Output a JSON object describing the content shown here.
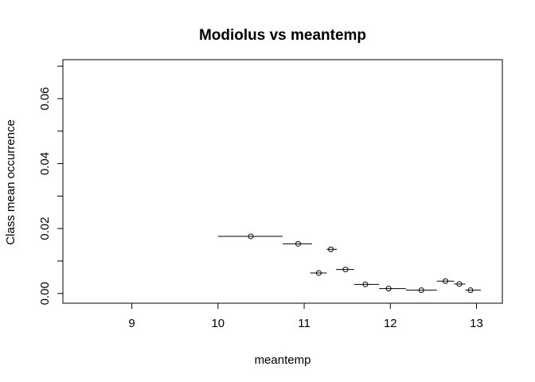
{
  "chart_data": {
    "type": "scatter",
    "title": "Modiolus vs meantemp",
    "xlabel": "meantemp",
    "ylabel": "Class mean occurrence",
    "xlim": [
      8.2,
      13.3
    ],
    "ylim": [
      -0.003,
      0.072
    ],
    "x_ticks": [
      9,
      10,
      11,
      12,
      13
    ],
    "x_tick_labels": [
      "9",
      "10",
      "11",
      "12",
      "13"
    ],
    "y_ticks": [
      0.0,
      0.01,
      0.02,
      0.03,
      0.04,
      0.05,
      0.06,
      0.07
    ],
    "y_tick_labels": [
      "0.00",
      "",
      "0.02",
      "",
      "0.04",
      "",
      "0.06",
      ""
    ],
    "grid": false,
    "points": [
      {
        "x": 10.38,
        "y": 0.0176,
        "x_start": 10.0,
        "x_end": 10.75
      },
      {
        "x": 10.93,
        "y": 0.0153,
        "x_start": 10.75,
        "x_end": 11.09
      },
      {
        "x": 11.17,
        "y": 0.0063,
        "x_start": 11.07,
        "x_end": 11.26
      },
      {
        "x": 11.31,
        "y": 0.0136,
        "x_start": 11.26,
        "x_end": 11.38
      },
      {
        "x": 11.48,
        "y": 0.0074,
        "x_start": 11.37,
        "x_end": 11.58
      },
      {
        "x": 11.71,
        "y": 0.0028,
        "x_start": 11.58,
        "x_end": 11.87
      },
      {
        "x": 11.98,
        "y": 0.0015,
        "x_start": 11.87,
        "x_end": 12.18
      },
      {
        "x": 12.36,
        "y": 0.001,
        "x_start": 12.18,
        "x_end": 12.54
      },
      {
        "x": 12.64,
        "y": 0.0038,
        "x_start": 12.54,
        "x_end": 12.74
      },
      {
        "x": 12.8,
        "y": 0.0029,
        "x_start": 12.74,
        "x_end": 12.87
      },
      {
        "x": 12.93,
        "y": 0.001,
        "x_start": 12.87,
        "x_end": 13.05
      }
    ]
  }
}
